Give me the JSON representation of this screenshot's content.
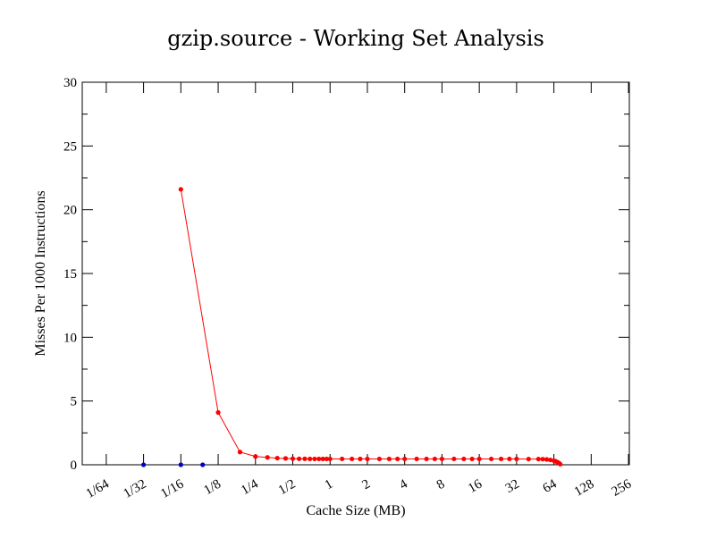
{
  "chart_data": {
    "type": "line",
    "title": "gzip.source - Working Set Analysis",
    "xlabel": "Cache Size (MB)",
    "ylabel": "Misses Per 1000 Instructions",
    "x_scale": "log2",
    "xlim": [
      0.01,
      260
    ],
    "ylim": [
      0,
      30
    ],
    "x_ticks": [
      {
        "value": 0.015625,
        "label": "1/64"
      },
      {
        "value": 0.03125,
        "label": "1/32"
      },
      {
        "value": 0.0625,
        "label": "1/16"
      },
      {
        "value": 0.125,
        "label": "1/8"
      },
      {
        "value": 0.25,
        "label": "1/4"
      },
      {
        "value": 0.5,
        "label": "1/2"
      },
      {
        "value": 1,
        "label": "1"
      },
      {
        "value": 2,
        "label": "2"
      },
      {
        "value": 4,
        "label": "4"
      },
      {
        "value": 8,
        "label": "8"
      },
      {
        "value": 16,
        "label": "16"
      },
      {
        "value": 32,
        "label": "32"
      },
      {
        "value": 64,
        "label": "64"
      },
      {
        "value": 128,
        "label": "128"
      },
      {
        "value": 256,
        "label": "256"
      }
    ],
    "y_ticks": [
      {
        "value": 0,
        "label": "0"
      },
      {
        "value": 5,
        "label": "5"
      },
      {
        "value": 10,
        "label": "10"
      },
      {
        "value": 15,
        "label": "15"
      },
      {
        "value": 20,
        "label": "20"
      },
      {
        "value": 25,
        "label": "25"
      },
      {
        "value": 30,
        "label": "30"
      }
    ],
    "series": [
      {
        "color": "#ff0000",
        "style": "line-markers",
        "x": [
          0.0625,
          0.125,
          0.1875,
          0.25,
          0.3125,
          0.375,
          0.4375,
          0.5,
          0.5625,
          0.625,
          0.6875,
          0.75,
          0.8125,
          0.875,
          0.9375,
          1,
          1.25,
          1.5,
          1.75,
          2,
          2.5,
          3,
          3.5,
          4,
          5,
          6,
          7,
          8,
          10,
          12,
          14,
          16,
          20,
          24,
          28,
          32,
          40,
          48,
          52,
          56,
          60,
          64,
          66,
          68,
          70,
          72
        ],
        "y": [
          21.6,
          4.1,
          1.0,
          0.65,
          0.58,
          0.52,
          0.5,
          0.48,
          0.47,
          0.47,
          0.46,
          0.46,
          0.46,
          0.46,
          0.46,
          0.46,
          0.46,
          0.46,
          0.46,
          0.46,
          0.46,
          0.46,
          0.46,
          0.46,
          0.46,
          0.46,
          0.46,
          0.46,
          0.46,
          0.46,
          0.46,
          0.46,
          0.46,
          0.46,
          0.46,
          0.46,
          0.45,
          0.45,
          0.44,
          0.42,
          0.38,
          0.32,
          0.28,
          0.22,
          0.15,
          0.05
        ]
      },
      {
        "color": "#0000cc",
        "style": "markers",
        "x": [
          0.03125,
          0.0625,
          0.09375
        ],
        "y": [
          0,
          0,
          0
        ]
      }
    ]
  }
}
